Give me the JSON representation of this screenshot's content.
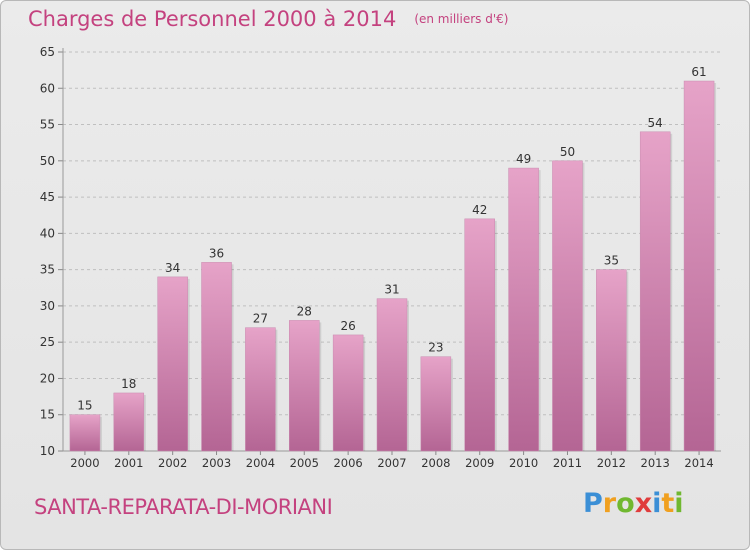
{
  "header": {
    "title": "Charges de Personnel 2000 à 2014",
    "unit_note": "(en milliers d'€)"
  },
  "footer": {
    "location": "SANTA-REPARATA-DI-MORIANI",
    "brand": "Proxiti",
    "brand_letters": [
      {
        "char": "P",
        "color": "#3b8fd6"
      },
      {
        "char": "r",
        "color": "#f0a020"
      },
      {
        "char": "o",
        "color": "#70b830"
      },
      {
        "char": "x",
        "color": "#e03c3c"
      },
      {
        "char": "i",
        "color": "#3b8fd6"
      },
      {
        "char": "t",
        "color": "#f0a020"
      },
      {
        "char": "i",
        "color": "#70b830"
      }
    ]
  },
  "colors": {
    "accent": "#c4427f",
    "bar_top": "#e6a3c8",
    "bar_bottom": "#b46594",
    "grid": "#bfbfbf",
    "axis_text": "#333333"
  },
  "chart_data": {
    "type": "bar",
    "categories": [
      "2000",
      "2001",
      "2002",
      "2003",
      "2004",
      "2005",
      "2006",
      "2007",
      "2008",
      "2009",
      "2010",
      "2011",
      "2012",
      "2013",
      "2014"
    ],
    "values": [
      15,
      18,
      34,
      36,
      27,
      28,
      26,
      31,
      23,
      42,
      49,
      50,
      35,
      54,
      61
    ],
    "data_labels": [
      "15",
      "18",
      "34",
      "36",
      "27",
      "28",
      "26",
      "31",
      "23",
      "42",
      "49",
      "50",
      "35",
      "54",
      "61"
    ],
    "ylim": [
      10,
      65
    ],
    "yticks": [
      10,
      15,
      20,
      25,
      30,
      35,
      40,
      45,
      50,
      55,
      60,
      65
    ],
    "grid": "horizontal dashed",
    "xlabel": "",
    "ylabel": ""
  }
}
